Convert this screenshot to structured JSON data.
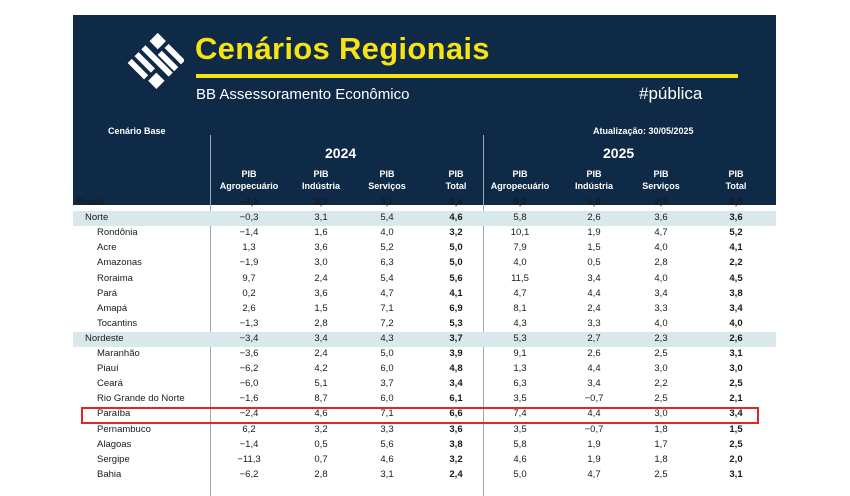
{
  "banner": {
    "title": "Cenários Regionais",
    "subtitle": "BB Assessoramento Econômico",
    "hashtag": "#pública",
    "logo_name": "banco-do-brasil-logo",
    "colors": {
      "navy": "#0f2a47",
      "yellow": "#f7e214",
      "region_row": "#d9e8ea",
      "highlight": "#e0252b"
    }
  },
  "table": {
    "scenario": "Cenário Base",
    "updated": "Atualização: 30/05/2025",
    "years": [
      "2024",
      "2025"
    ],
    "columns": [
      [
        "PIB",
        "Agropecuário"
      ],
      [
        "PIB",
        "Indústria"
      ],
      [
        "PIB",
        "Serviços"
      ],
      [
        "PIB",
        "Total"
      ],
      [
        "PIB",
        "Agropecuário"
      ],
      [
        "PIB",
        "Indústria"
      ],
      [
        "PIB",
        "Serviços"
      ],
      [
        "PIB",
        "Total"
      ]
    ],
    "highlighted_row": "Paraíba",
    "rows": [
      {
        "name": "Brasil",
        "level": "country",
        "values": [
          "-3,2",
          "3,3",
          "3,7",
          "3,4",
          "8,2",
          "1,9",
          "2,3",
          "2,5"
        ]
      },
      {
        "name": "Norte",
        "level": "region",
        "values": [
          "-0,3",
          "3,1",
          "5,4",
          "4,6",
          "5,8",
          "2,6",
          "3,6",
          "3,6"
        ]
      },
      {
        "name": "Rondônia",
        "level": "state",
        "values": [
          "-1,4",
          "1,6",
          "4,0",
          "3,2",
          "10,1",
          "1,9",
          "4,7",
          "5,2"
        ]
      },
      {
        "name": "Acre",
        "level": "state",
        "values": [
          "1,3",
          "3,6",
          "5,2",
          "5,0",
          "7,9",
          "1,5",
          "4,0",
          "4,1"
        ]
      },
      {
        "name": "Amazonas",
        "level": "state",
        "values": [
          "-1,9",
          "3,0",
          "6,3",
          "5,0",
          "4,0",
          "0,5",
          "2,8",
          "2,2"
        ]
      },
      {
        "name": "Roraima",
        "level": "state",
        "values": [
          "9,7",
          "2,4",
          "5,4",
          "5,6",
          "11,5",
          "3,4",
          "4,0",
          "4,5"
        ]
      },
      {
        "name": "Pará",
        "level": "state",
        "values": [
          "0,2",
          "3,6",
          "4,7",
          "4,1",
          "4,7",
          "4,4",
          "3,4",
          "3,8"
        ]
      },
      {
        "name": "Amapá",
        "level": "state",
        "values": [
          "2,6",
          "1,5",
          "7,1",
          "6,9",
          "8,1",
          "2,4",
          "3,3",
          "3,4"
        ]
      },
      {
        "name": "Tocantins",
        "level": "state",
        "values": [
          "-1,3",
          "2,8",
          "7,2",
          "5,3",
          "4,3",
          "3,3",
          "4,0",
          "4,0"
        ]
      },
      {
        "name": "Nordeste",
        "level": "region",
        "values": [
          "-3,4",
          "3,4",
          "4,3",
          "3,7",
          "5,3",
          "2,7",
          "2,3",
          "2,6"
        ]
      },
      {
        "name": "Maranhão",
        "level": "state",
        "values": [
          "-3,6",
          "2,4",
          "5,0",
          "3,9",
          "9,1",
          "2,6",
          "2,5",
          "3,1"
        ]
      },
      {
        "name": "Piauí",
        "level": "state",
        "values": [
          "-6,2",
          "4,2",
          "6,0",
          "4,8",
          "1,3",
          "4,4",
          "3,0",
          "3,0"
        ]
      },
      {
        "name": "Ceará",
        "level": "state",
        "values": [
          "-6,0",
          "5,1",
          "3,7",
          "3,4",
          "6,3",
          "3,4",
          "2,2",
          "2,5"
        ]
      },
      {
        "name": "Rio Grande do Norte",
        "level": "state",
        "values": [
          "-1,6",
          "8,7",
          "6,0",
          "6,1",
          "3,5",
          "-0,7",
          "2,5",
          "2,1"
        ]
      },
      {
        "name": "Paraíba",
        "level": "state",
        "values": [
          "-2,4",
          "4,6",
          "7,1",
          "6,6",
          "7,4",
          "4,4",
          "3,0",
          "3,4"
        ]
      },
      {
        "name": "Pernambuco",
        "level": "state",
        "values": [
          "6,2",
          "3,2",
          "3,3",
          "3,6",
          "3,5",
          "-0,7",
          "1,8",
          "1,5"
        ]
      },
      {
        "name": "Alagoas",
        "level": "state",
        "values": [
          "-1,4",
          "0,5",
          "5,6",
          "3,8",
          "5,8",
          "1,9",
          "1,7",
          "2,5"
        ]
      },
      {
        "name": "Sergipe",
        "level": "state",
        "values": [
          "-11,3",
          "0,7",
          "4,6",
          "3,2",
          "4,6",
          "1,9",
          "1,8",
          "2,0"
        ]
      },
      {
        "name": "Bahia",
        "level": "state",
        "values": [
          "-6,2",
          "2,8",
          "3,1",
          "2,4",
          "5,0",
          "4,7",
          "2,5",
          "3,1"
        ]
      }
    ]
  }
}
